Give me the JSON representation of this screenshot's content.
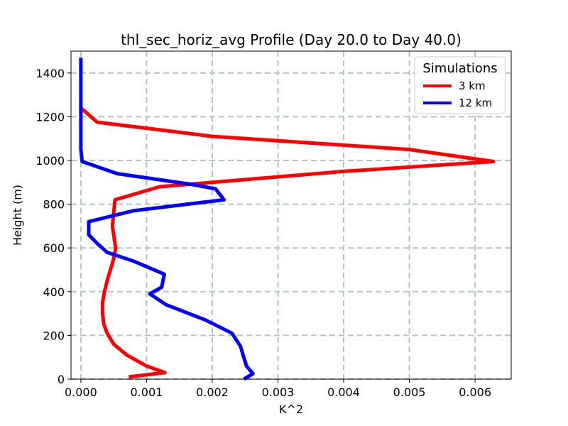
{
  "chart_data": {
    "type": "line",
    "title": "thl_sec_horiz_avg Profile (Day 20.0 to Day 40.0)",
    "xlabel": "K^2",
    "ylabel": "Height (m)",
    "xlim": [
      -0.00015,
      0.00655
    ],
    "ylim": [
      0,
      1500
    ],
    "xticks": [
      0.0,
      0.001,
      0.002,
      0.003,
      0.004,
      0.005,
      0.006
    ],
    "xtick_labels": [
      "0.000",
      "0.001",
      "0.002",
      "0.003",
      "0.004",
      "0.005",
      "0.006"
    ],
    "yticks": [
      0,
      200,
      400,
      600,
      800,
      1000,
      1200,
      1400
    ],
    "ytick_labels": [
      "0",
      "200",
      "400",
      "600",
      "800",
      "1000",
      "1200",
      "1400"
    ],
    "grid": true,
    "legend": {
      "title": "Simulations",
      "placement": "top-right"
    },
    "series": [
      {
        "name": "3 km",
        "color": "#ff0000",
        "x": [
          0.00073,
          0.00128,
          0.001,
          0.0007,
          0.0005,
          0.0004,
          0.00035,
          0.00033,
          0.00033,
          0.00036,
          0.0004,
          0.00045,
          0.0005,
          0.00053,
          0.00048,
          0.00052,
          0.0012,
          0.004,
          0.00628,
          0.005,
          0.002,
          0.0012,
          0.00025,
          0.0,
          0.0
        ],
        "y": [
          10,
          30,
          60,
          110,
          160,
          210,
          250,
          300,
          350,
          400,
          450,
          500,
          550,
          600,
          700,
          820,
          880,
          950,
          995,
          1050,
          1110,
          1140,
          1175,
          1240,
          1250
        ]
      },
      {
        "name": "12 km",
        "color": "#0000ff",
        "x": [
          0.00248,
          0.00262,
          0.00252,
          0.00243,
          0.0023,
          0.0019,
          0.0013,
          0.00105,
          0.00123,
          0.00127,
          0.0008,
          0.0004,
          0.00025,
          0.00012,
          0.00012,
          0.0008,
          0.00218,
          0.00205,
          0.0017,
          0.00055,
          2e-05,
          0.0,
          0.0,
          0.0
        ],
        "y": [
          0,
          25,
          60,
          150,
          210,
          270,
          340,
          390,
          420,
          480,
          540,
          580,
          620,
          660,
          720,
          770,
          820,
          870,
          890,
          940,
          995,
          1050,
          1200,
          1470
        ]
      }
    ]
  }
}
